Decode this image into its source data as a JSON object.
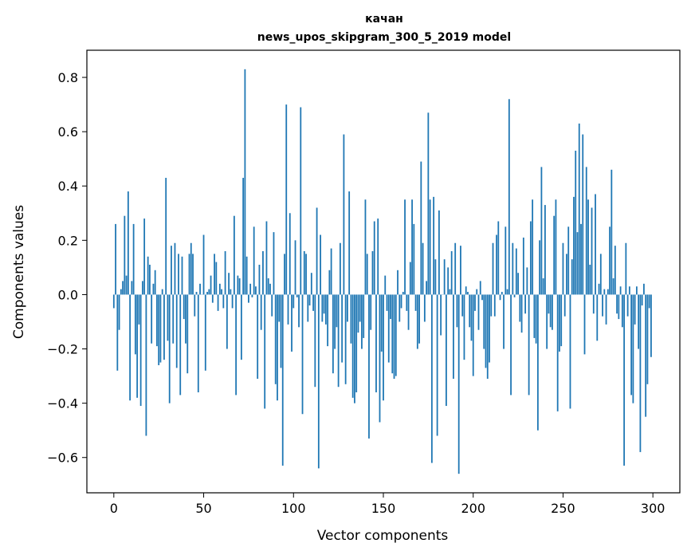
{
  "chart_data": {
    "type": "bar",
    "title": "качан",
    "subtitle": "news_upos_skipgram_300_5_2019 model",
    "xlabel": "Vector components",
    "ylabel": "Components values",
    "xlim": [
      -15,
      315
    ],
    "ylim": [
      -0.73,
      0.9
    ],
    "xticks": [
      0,
      50,
      100,
      150,
      200,
      250,
      300
    ],
    "yticks": [
      -0.6,
      -0.4,
      -0.2,
      0.0,
      0.2,
      0.4,
      0.6,
      0.8
    ],
    "ytick_labels": [
      "−0.6",
      "−0.4",
      "−0.2",
      "0.0",
      "0.2",
      "0.4",
      "0.6",
      "0.8"
    ],
    "bar_color": "#1f77b4",
    "grid": false,
    "x": [
      0,
      1,
      2,
      3,
      4,
      5,
      6,
      7,
      8,
      9,
      10,
      11,
      12,
      13,
      14,
      15,
      16,
      17,
      18,
      19,
      20,
      21,
      22,
      23,
      24,
      25,
      26,
      27,
      28,
      29,
      30,
      31,
      32,
      33,
      34,
      35,
      36,
      37,
      38,
      39,
      40,
      41,
      42,
      43,
      44,
      45,
      46,
      47,
      48,
      49,
      50,
      51,
      52,
      53,
      54,
      55,
      56,
      57,
      58,
      59,
      60,
      61,
      62,
      63,
      64,
      65,
      66,
      67,
      68,
      69,
      70,
      71,
      72,
      73,
      74,
      75,
      76,
      77,
      78,
      79,
      80,
      81,
      82,
      83,
      84,
      85,
      86,
      87,
      88,
      89,
      90,
      91,
      92,
      93,
      94,
      95,
      96,
      97,
      98,
      99,
      100,
      101,
      102,
      103,
      104,
      105,
      106,
      107,
      108,
      109,
      110,
      111,
      112,
      113,
      114,
      115,
      116,
      117,
      118,
      119,
      120,
      121,
      122,
      123,
      124,
      125,
      126,
      127,
      128,
      129,
      130,
      131,
      132,
      133,
      134,
      135,
      136,
      137,
      138,
      139,
      140,
      141,
      142,
      143,
      144,
      145,
      146,
      147,
      148,
      149,
      150,
      151,
      152,
      153,
      154,
      155,
      156,
      157,
      158,
      159,
      160,
      161,
      162,
      163,
      164,
      165,
      166,
      167,
      168,
      169,
      170,
      171,
      172,
      173,
      174,
      175,
      176,
      177,
      178,
      179,
      180,
      181,
      182,
      183,
      184,
      185,
      186,
      187,
      188,
      189,
      190,
      191,
      192,
      193,
      194,
      195,
      196,
      197,
      198,
      199,
      200,
      201,
      202,
      203,
      204,
      205,
      206,
      207,
      208,
      209,
      210,
      211,
      212,
      213,
      214,
      215,
      216,
      217,
      218,
      219,
      220,
      221,
      222,
      223,
      224,
      225,
      226,
      227,
      228,
      229,
      230,
      231,
      232,
      233,
      234,
      235,
      236,
      237,
      238,
      239,
      240,
      241,
      242,
      243,
      244,
      245,
      246,
      247,
      248,
      249,
      250,
      251,
      252,
      253,
      254,
      255,
      256,
      257,
      258,
      259,
      260,
      261,
      262,
      263,
      264,
      265,
      266,
      267,
      268,
      269,
      270,
      271,
      272,
      273,
      274,
      275,
      276,
      277,
      278,
      279,
      280,
      281,
      282,
      283,
      284,
      285,
      286,
      287,
      288,
      289,
      290,
      291,
      292,
      293,
      294,
      295,
      296,
      297,
      298,
      299
    ],
    "values": [
      -0.05,
      0.26,
      -0.28,
      -0.13,
      0.02,
      0.05,
      0.29,
      0.07,
      0.38,
      -0.39,
      0.05,
      0.26,
      -0.22,
      -0.38,
      -0.11,
      -0.41,
      0.05,
      0.28,
      -0.52,
      0.14,
      0.11,
      -0.18,
      0.04,
      0.09,
      -0.19,
      -0.26,
      -0.25,
      0.02,
      -0.24,
      0.43,
      -0.17,
      -0.4,
      0.18,
      -0.18,
      0.19,
      -0.27,
      0.15,
      -0.37,
      0.14,
      -0.09,
      -0.18,
      -0.29,
      0.15,
      0.19,
      0.15,
      -0.08,
      0.01,
      -0.36,
      0.04,
      0.0,
      0.22,
      -0.28,
      0.01,
      0.02,
      0.07,
      -0.03,
      0.15,
      0.12,
      -0.06,
      0.04,
      0.02,
      -0.05,
      0.16,
      -0.2,
      0.08,
      0.02,
      -0.05,
      0.29,
      -0.37,
      0.07,
      0.06,
      -0.24,
      0.43,
      0.83,
      0.14,
      -0.03,
      0.04,
      -0.01,
      0.25,
      0.03,
      -0.31,
      0.11,
      -0.13,
      0.16,
      -0.42,
      0.27,
      0.06,
      0.04,
      -0.08,
      0.23,
      -0.33,
      -0.39,
      -0.1,
      -0.27,
      -0.63,
      0.15,
      0.7,
      -0.11,
      0.3,
      -0.21,
      -0.05,
      0.2,
      -0.01,
      -0.12,
      0.69,
      -0.44,
      0.16,
      0.15,
      -0.1,
      -0.04,
      0.08,
      -0.06,
      -0.34,
      0.32,
      -0.64,
      0.22,
      -0.1,
      -0.07,
      -0.11,
      -0.19,
      0.09,
      0.17,
      -0.29,
      -0.2,
      -0.12,
      -0.34,
      0.19,
      -0.25,
      0.59,
      -0.33,
      -0.1,
      0.38,
      -0.18,
      -0.38,
      -0.4,
      -0.36,
      -0.14,
      -0.1,
      -0.2,
      -0.16,
      0.35,
      0.15,
      -0.53,
      -0.13,
      0.16,
      0.27,
      -0.36,
      0.28,
      -0.47,
      -0.21,
      -0.39,
      0.07,
      -0.06,
      -0.25,
      -0.09,
      -0.29,
      -0.31,
      -0.3,
      0.09,
      -0.1,
      -0.05,
      0.01,
      0.35,
      -0.06,
      -0.13,
      0.12,
      0.35,
      0.26,
      -0.06,
      -0.2,
      -0.18,
      0.49,
      0.19,
      -0.1,
      0.05,
      0.67,
      0.35,
      -0.62,
      0.36,
      0.13,
      -0.52,
      0.31,
      -0.15,
      0.0,
      0.13,
      -0.41,
      0.1,
      0.02,
      0.16,
      -0.31,
      0.19,
      -0.12,
      -0.66,
      0.18,
      -0.08,
      -0.24,
      0.03,
      0.01,
      -0.12,
      -0.17,
      -0.3,
      -0.06,
      0.02,
      -0.13,
      0.05,
      -0.02,
      -0.2,
      -0.27,
      -0.31,
      -0.25,
      -0.08,
      0.19,
      -0.08,
      0.22,
      0.27,
      -0.02,
      0.01,
      -0.2,
      0.25,
      0.02,
      0.72,
      -0.37,
      0.19,
      -0.01,
      0.17,
      0.08,
      -0.1,
      -0.14,
      0.21,
      -0.07,
      0.1,
      -0.37,
      0.27,
      0.35,
      -0.16,
      -0.18,
      -0.5,
      0.2,
      0.47,
      0.06,
      0.33,
      -0.2,
      -0.07,
      -0.12,
      -0.13,
      0.29,
      0.35,
      -0.43,
      -0.21,
      -0.19,
      0.19,
      -0.08,
      0.15,
      0.25,
      -0.42,
      0.13,
      0.36,
      0.53,
      0.23,
      0.63,
      0.26,
      0.59,
      -0.22,
      0.47,
      0.35,
      0.11,
      0.32,
      -0.07,
      0.37,
      -0.17,
      0.04,
      0.15,
      -0.08,
      0.02,
      -0.11,
      0.02,
      0.25,
      0.46,
      0.06,
      0.18,
      -0.07,
      -0.09,
      0.03,
      -0.12,
      -0.63,
      0.19,
      -0.08,
      0.03,
      -0.37,
      -0.4,
      -0.11,
      0.03,
      -0.2,
      -0.58,
      -0.04,
      0.04,
      -0.45,
      -0.33,
      -0.05,
      -0.23
    ]
  }
}
